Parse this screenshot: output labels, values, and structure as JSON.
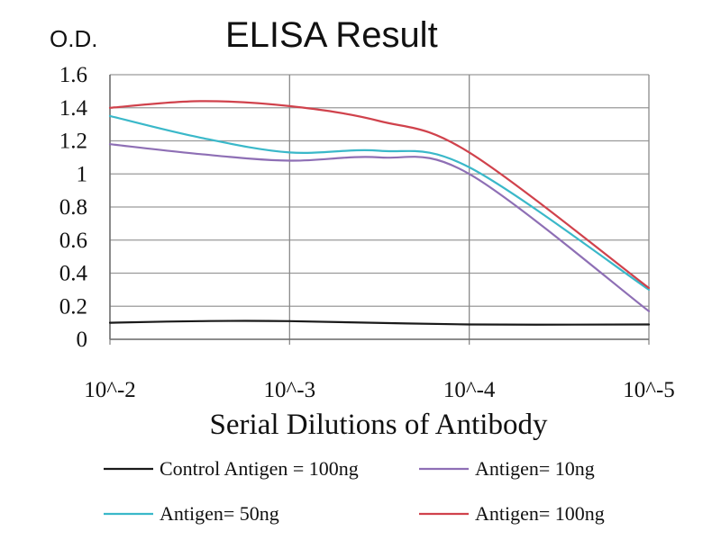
{
  "chart_data": {
    "type": "line",
    "title": "ELISA Result",
    "ylabel": "O.D.",
    "xlabel": "Serial Dilutions of Antibody",
    "categories": [
      "10^-2",
      "10^-3",
      "10^-4",
      "10^-5"
    ],
    "y_ticks": [
      "0",
      "0.2",
      "0.4",
      "0.6",
      "0.8",
      "1",
      "1.2",
      "1.4",
      "1.6"
    ],
    "ylim": [
      0,
      1.6
    ],
    "grid": true,
    "legend_position": "bottom",
    "series": [
      {
        "name": "Control Antigen = 100ng",
        "color": "#1a1a1a",
        "x": [
          0,
          0.5,
          1,
          2,
          3
        ],
        "values": [
          0.1,
          0.11,
          0.11,
          0.09,
          0.09
        ]
      },
      {
        "name": "Antigen= 10ng",
        "color": "#8e6fb5",
        "x": [
          0,
          0.5,
          1,
          1.5,
          2,
          3
        ],
        "values": [
          1.18,
          1.12,
          1.08,
          1.1,
          1.0,
          0.17
        ]
      },
      {
        "name": "Antigen= 50ng",
        "color": "#3ab8c9",
        "x": [
          0,
          0.5,
          1,
          1.5,
          2,
          3
        ],
        "values": [
          1.35,
          1.22,
          1.13,
          1.14,
          1.04,
          0.3
        ]
      },
      {
        "name": "Antigen= 100ng",
        "color": "#d0424c",
        "x": [
          0,
          0.5,
          1,
          1.5,
          2,
          3
        ],
        "values": [
          1.4,
          1.44,
          1.41,
          1.32,
          1.13,
          0.31
        ]
      }
    ]
  }
}
